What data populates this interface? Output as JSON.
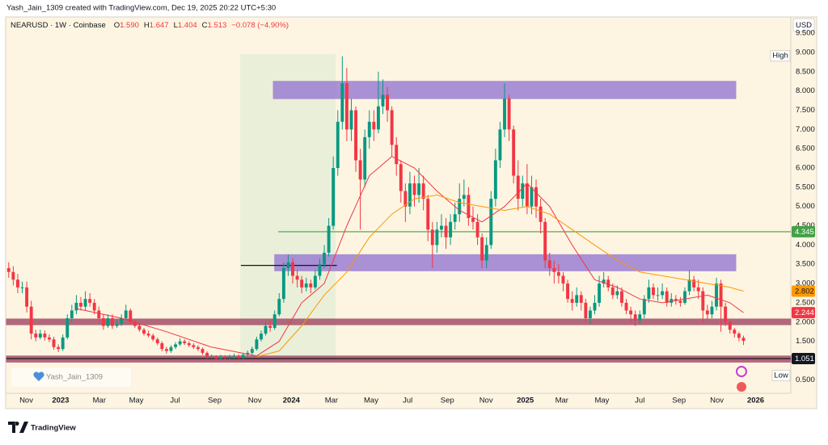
{
  "header": {
    "credit": "Yash_Jain_1309 created with TradingView.com, Dec 19, 2025 20:22 UTC+5:30",
    "symbol": "NEARUSD · 1W · Coinbase",
    "ohlc": [
      {
        "key": "O",
        "text": "1.590"
      },
      {
        "key": "H",
        "text": "1.647"
      },
      {
        "key": "L",
        "text": "1.404"
      },
      {
        "key": "C",
        "text": "1.513"
      }
    ],
    "change": "−0.078 (−4.90%)"
  },
  "currency": "USD",
  "watermark": "Yash_Jain_1309",
  "brand": "TradingView",
  "chart_data": {
    "type": "candlestick",
    "up_color": "#089981",
    "down_color": "#f23645",
    "open": [
      3.4,
      3.3,
      3.1,
      2.9,
      2.9,
      2.4,
      1.7,
      1.6,
      1.7,
      1.6,
      1.55,
      1.35,
      1.3,
      1.6,
      2.1,
      2.3,
      2.5,
      2.4,
      2.6,
      2.5,
      2.3,
      2.1,
      1.9,
      2.1,
      1.9,
      1.95,
      2.1,
      2.3,
      2.0,
      1.9,
      1.8,
      1.7,
      1.65,
      1.55,
      1.45,
      1.3,
      1.25,
      1.35,
      1.42,
      1.5,
      1.45,
      1.4,
      1.35,
      1.3,
      1.2,
      1.1,
      1.1,
      1.05,
      1.1,
      1.07,
      1.1,
      1.12,
      1.08,
      1.15,
      1.2,
      1.3,
      1.55,
      1.7,
      1.9,
      1.85,
      2.2,
      2.6,
      3.4,
      3.55,
      3.2,
      3.1,
      2.9,
      3.0,
      2.9,
      3.2,
      3.5,
      3.8,
      4.5,
      6.0,
      7.2,
      8.2,
      7.0,
      7.5,
      6.2,
      5.7,
      6.8,
      7.2,
      7.0,
      7.6,
      7.9,
      7.5,
      6.6,
      6.1,
      5.4,
      5.0,
      5.6,
      5.3,
      5.6,
      5.2,
      4.4,
      4.0,
      4.4,
      4.5,
      4.2,
      4.6,
      4.8,
      5.2,
      5.3,
      4.7,
      4.6,
      4.2,
      3.6,
      4.0,
      5.2,
      6.2,
      7.0,
      7.8,
      7.0,
      5.8,
      5.2,
      5.6,
      5.0,
      5.5,
      5.0,
      4.6,
      3.6,
      3.4,
      3.3,
      3.2,
      3.0,
      2.6,
      2.5,
      2.7,
      2.5,
      2.1,
      2.3,
      2.5,
      3.0,
      3.1,
      2.9,
      2.7,
      2.8,
      2.5,
      2.3,
      2.2,
      2.05,
      2.2,
      2.6,
      2.9,
      2.7,
      2.7,
      2.8,
      2.5,
      2.6,
      2.55,
      2.5,
      2.8,
      3.1,
      2.9,
      2.8,
      2.3,
      2.2,
      2.4,
      3.0,
      2.4,
      2.0,
      1.8,
      1.7,
      1.59
    ],
    "high": [
      3.55,
      3.45,
      3.25,
      3.05,
      3.05,
      2.55,
      1.8,
      1.8,
      1.78,
      1.68,
      1.62,
      1.42,
      1.68,
      2.2,
      2.45,
      2.7,
      2.65,
      2.8,
      2.75,
      2.6,
      2.4,
      2.2,
      2.2,
      2.2,
      2.05,
      2.2,
      2.45,
      2.35,
      2.05,
      1.95,
      1.85,
      1.78,
      1.7,
      1.6,
      1.5,
      1.36,
      1.4,
      1.48,
      1.58,
      1.55,
      1.5,
      1.45,
      1.4,
      1.34,
      1.24,
      1.16,
      1.14,
      1.15,
      1.14,
      1.15,
      1.18,
      1.16,
      1.2,
      1.26,
      1.36,
      1.62,
      1.78,
      2.0,
      2.05,
      2.3,
      2.75,
      3.55,
      3.75,
      3.65,
      3.35,
      3.2,
      3.15,
      3.1,
      3.35,
      3.65,
      4.0,
      4.7,
      6.3,
      7.5,
      8.9,
      8.6,
      7.8,
      7.6,
      6.5,
      7.0,
      7.5,
      7.5,
      8.5,
      8.3,
      8.1,
      7.6,
      6.8,
      6.2,
      5.6,
      5.9,
      5.8,
      6.0,
      5.8,
      5.3,
      4.6,
      4.6,
      4.8,
      4.7,
      4.8,
      5.1,
      5.6,
      5.7,
      5.5,
      5.0,
      4.8,
      4.3,
      4.2,
      5.4,
      6.5,
      7.2,
      8.2,
      7.9,
      7.1,
      6.2,
      5.8,
      6.1,
      5.8,
      5.7,
      5.2,
      4.7,
      3.8,
      3.6,
      3.5,
      3.3,
      3.1,
      2.8,
      2.9,
      2.8,
      2.6,
      2.4,
      2.7,
      3.2,
      3.3,
      3.2,
      3.0,
      2.95,
      2.9,
      2.6,
      2.4,
      2.3,
      2.3,
      2.7,
      3.1,
      3.0,
      2.9,
      3.0,
      2.9,
      2.75,
      2.7,
      2.65,
      2.9,
      3.35,
      3.2,
      3.1,
      2.9,
      2.45,
      2.55,
      3.15,
      3.1,
      2.5,
      2.05,
      1.85,
      1.75,
      1.647
    ],
    "low": [
      3.15,
      2.95,
      2.75,
      2.75,
      2.25,
      1.55,
      1.5,
      1.55,
      1.52,
      1.48,
      1.28,
      1.22,
      1.25,
      1.55,
      2.0,
      2.2,
      2.3,
      2.3,
      2.4,
      2.2,
      2.0,
      1.8,
      1.85,
      1.82,
      1.85,
      1.9,
      2.05,
      1.95,
      1.85,
      1.75,
      1.65,
      1.6,
      1.5,
      1.4,
      1.24,
      1.18,
      1.2,
      1.3,
      1.38,
      1.4,
      1.35,
      1.3,
      1.25,
      1.15,
      1.05,
      1.05,
      1.0,
      1.02,
      1.03,
      1.03,
      1.05,
      1.01,
      1.04,
      1.1,
      1.15,
      1.26,
      1.5,
      1.65,
      1.75,
      1.8,
      2.15,
      2.5,
      3.2,
      3.0,
      2.9,
      2.75,
      2.8,
      2.75,
      2.85,
      3.1,
      3.4,
      3.7,
      4.4,
      5.8,
      7.0,
      6.7,
      6.7,
      5.9,
      4.4,
      5.5,
      6.5,
      6.7,
      6.9,
      7.4,
      7.2,
      6.3,
      5.8,
      5.1,
      4.6,
      4.8,
      5.0,
      5.1,
      4.9,
      4.1,
      3.4,
      3.8,
      4.2,
      3.9,
      4.0,
      4.4,
      4.6,
      5.0,
      4.5,
      4.4,
      4.0,
      3.4,
      3.4,
      3.9,
      5.0,
      6.0,
      6.8,
      6.7,
      5.6,
      4.9,
      5.0,
      4.8,
      4.8,
      4.7,
      4.3,
      3.4,
      3.2,
      3.0,
      3.0,
      2.8,
      2.5,
      2.3,
      2.4,
      2.3,
      2.0,
      1.95,
      2.2,
      2.4,
      2.9,
      2.8,
      2.6,
      2.6,
      2.4,
      2.2,
      2.0,
      1.9,
      1.95,
      2.1,
      2.5,
      2.6,
      2.55,
      2.6,
      2.4,
      2.4,
      2.45,
      2.4,
      2.45,
      2.7,
      2.8,
      2.6,
      2.0,
      2.05,
      2.1,
      2.3,
      1.75,
      1.9,
      1.7,
      1.6,
      1.5,
      1.404
    ],
    "close": [
      3.3,
      3.1,
      2.9,
      2.9,
      2.4,
      1.7,
      1.6,
      1.7,
      1.6,
      1.55,
      1.35,
      1.3,
      1.6,
      2.1,
      2.3,
      2.5,
      2.4,
      2.6,
      2.5,
      2.3,
      2.1,
      1.9,
      2.1,
      1.9,
      1.95,
      2.1,
      2.3,
      2.0,
      1.9,
      1.8,
      1.7,
      1.65,
      1.55,
      1.45,
      1.3,
      1.25,
      1.35,
      1.42,
      1.5,
      1.45,
      1.4,
      1.35,
      1.3,
      1.2,
      1.1,
      1.1,
      1.05,
      1.1,
      1.07,
      1.1,
      1.12,
      1.08,
      1.15,
      1.2,
      1.3,
      1.55,
      1.7,
      1.9,
      1.85,
      2.2,
      2.6,
      3.4,
      3.55,
      3.2,
      3.1,
      2.9,
      3.0,
      2.9,
      3.2,
      3.5,
      3.8,
      4.5,
      6.0,
      7.2,
      8.2,
      7.0,
      7.5,
      6.2,
      5.7,
      6.8,
      7.2,
      7.0,
      7.6,
      7.9,
      7.5,
      6.6,
      6.1,
      5.4,
      5.0,
      5.6,
      5.3,
      5.6,
      5.2,
      4.4,
      4.0,
      4.4,
      4.5,
      4.2,
      4.6,
      4.8,
      5.2,
      5.3,
      4.7,
      4.6,
      4.2,
      3.6,
      4.0,
      5.2,
      6.2,
      7.0,
      7.8,
      7.0,
      5.8,
      5.2,
      5.6,
      5.0,
      5.5,
      5.0,
      4.6,
      3.6,
      3.4,
      3.3,
      3.2,
      3.0,
      2.6,
      2.5,
      2.7,
      2.5,
      2.1,
      2.3,
      2.5,
      3.0,
      3.1,
      2.9,
      2.7,
      2.8,
      2.5,
      2.3,
      2.2,
      2.05,
      2.2,
      2.6,
      2.9,
      2.7,
      2.7,
      2.8,
      2.5,
      2.6,
      2.55,
      2.5,
      2.8,
      3.1,
      2.9,
      2.8,
      2.3,
      2.2,
      2.4,
      3.0,
      2.4,
      2.0,
      1.8,
      1.7,
      1.59,
      1.513
    ],
    "lines": [
      {
        "color": "#f23645",
        "x": [
          15,
          25,
          35,
          45,
          55,
          60,
          65,
          70,
          75,
          80,
          85,
          90,
          95,
          100,
          105,
          110,
          115,
          120,
          125,
          130,
          135,
          140,
          145,
          150,
          155,
          160,
          163
        ],
        "values": [
          2.35,
          2.1,
          1.75,
          1.35,
          1.12,
          1.5,
          2.5,
          3.0,
          4.5,
          5.8,
          6.3,
          6.0,
          5.4,
          4.9,
          4.6,
          5.0,
          5.6,
          5.0,
          4.0,
          3.1,
          2.9,
          2.6,
          2.5,
          2.6,
          2.7,
          2.5,
          2.244
        ],
        "value_label": "2.244"
      },
      {
        "color": "#ff9800",
        "x": [
          55,
          60,
          65,
          70,
          75,
          80,
          85,
          90,
          95,
          100,
          105,
          110,
          115,
          120,
          125,
          130,
          135,
          140,
          145,
          150,
          155,
          160,
          163
        ],
        "values": [
          1.1,
          1.25,
          1.9,
          2.7,
          3.3,
          4.2,
          4.8,
          5.2,
          5.3,
          5.1,
          5.0,
          4.9,
          5.0,
          4.8,
          4.4,
          4.0,
          3.6,
          3.3,
          3.2,
          3.1,
          3.0,
          2.9,
          2.802
        ],
        "value_label": "2.802"
      }
    ],
    "zones": [
      {
        "color": "#9c7fd2",
        "range": [
          7.8,
          8.25
        ],
        "x": [
          58.7,
          161.3
        ]
      },
      {
        "color": "#9c7fd2",
        "range": [
          3.33,
          3.75
        ],
        "x": [
          59,
          161.3
        ]
      },
      {
        "color": "#a5506b",
        "range": [
          1.93,
          2.08
        ],
        "x": [
          -0.5,
          173.5
        ]
      },
      {
        "color": "#a5506b",
        "range": [
          0.96,
          1.12
        ],
        "x": [
          -0.5,
          173.5
        ]
      }
    ],
    "levels": [
      {
        "value": 4.345,
        "label": "4.345",
        "color": "#43a047",
        "x": [
          59.8,
          173.5
        ]
      },
      {
        "value": 1.051,
        "label": "1.051",
        "color": "#131722",
        "x": [
          -0.5,
          173.5
        ]
      },
      {
        "value": 3.47,
        "color": "#131722",
        "x": [
          51.5,
          72.8
        ]
      }
    ],
    "high_label": "High",
    "low_label": "Low",
    "xlim": [
      -0.5,
      173.5
    ],
    "ylim": [
      0.15,
      9.9
    ],
    "xticks": [
      {
        "value": 3.9,
        "label": "Nov"
      },
      {
        "value": 11.5,
        "label": "2023"
      },
      {
        "value": 20.1,
        "label": "Mar"
      },
      {
        "value": 28.3,
        "label": "May"
      },
      {
        "value": 36.9,
        "label": "Jul"
      },
      {
        "value": 45.7,
        "label": "Sep"
      },
      {
        "value": 54.6,
        "label": "Nov"
      },
      {
        "value": 62.7,
        "label": "2024"
      },
      {
        "value": 71.6,
        "label": "Mar"
      },
      {
        "value": 80.4,
        "label": "May"
      },
      {
        "value": 88.5,
        "label": "Jul"
      },
      {
        "value": 97.3,
        "label": "Sep"
      },
      {
        "value": 105.9,
        "label": "Nov"
      },
      {
        "value": 114.6,
        "label": "2025"
      },
      {
        "value": 122.7,
        "label": "Mar"
      },
      {
        "value": 131.6,
        "label": "May"
      },
      {
        "value": 140,
        "label": "Jul"
      },
      {
        "value": 148.7,
        "label": "Sep"
      },
      {
        "value": 157.1,
        "label": "Nov"
      },
      {
        "value": 165.7,
        "label": "2026"
      }
    ],
    "yticks": [
      {
        "value": 0.5,
        "label": "0.500"
      },
      {
        "value": 1,
        "label": "1.000"
      },
      {
        "value": 1.5,
        "label": "1.500"
      },
      {
        "value": 2,
        "label": "2.000"
      },
      {
        "value": 2.5,
        "label": "2.500"
      },
      {
        "value": 3,
        "label": "3.000"
      },
      {
        "value": 3.5,
        "label": "3.500"
      },
      {
        "value": 4,
        "label": "4.000"
      },
      {
        "value": 4.5,
        "label": "4.500"
      },
      {
        "value": 5,
        "label": "5.000"
      },
      {
        "value": 5.5,
        "label": "5.500"
      },
      {
        "value": 6,
        "label": "6.000"
      },
      {
        "value": 6.5,
        "label": "6.500"
      },
      {
        "value": 7,
        "label": "7.000"
      },
      {
        "value": 7.5,
        "label": "7.500"
      },
      {
        "value": 8,
        "label": "8.000"
      },
      {
        "value": 8.5,
        "label": "8.500"
      },
      {
        "value": 9,
        "label": "9.000"
      },
      {
        "value": 9.5,
        "label": "9.500"
      }
    ],
    "grid": false
  }
}
